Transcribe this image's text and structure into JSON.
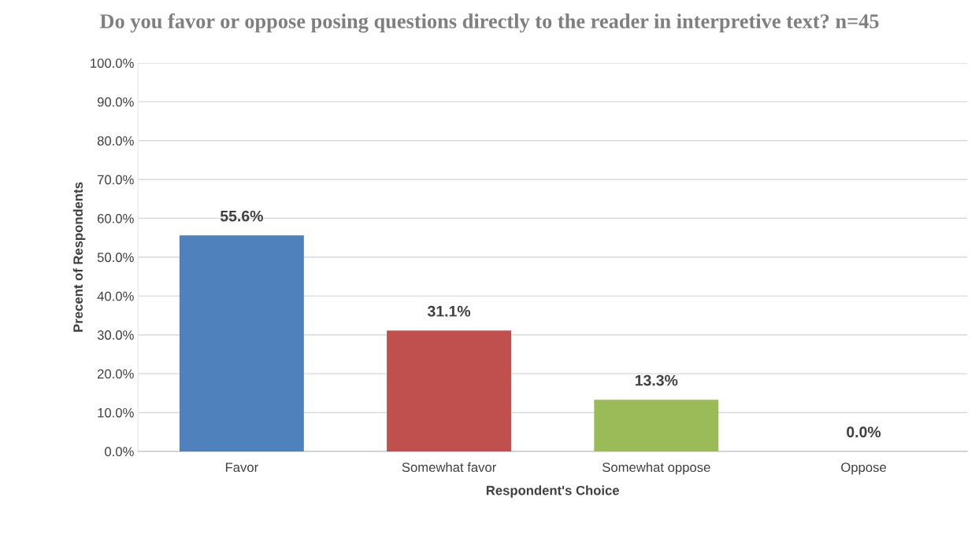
{
  "chart_data": {
    "type": "bar",
    "title": "Do you favor or oppose posing questions directly to the reader in interpretive text? n=45",
    "xlabel": "Respondent's Choice",
    "ylabel": "Precent of Respondents",
    "categories": [
      "Favor",
      "Somewhat favor",
      "Somewhat oppose",
      "Oppose"
    ],
    "values": [
      55.6,
      31.1,
      13.3,
      0.0
    ],
    "colors": [
      "#4f81bd",
      "#c0504d",
      "#9bbb59",
      "#8064a2"
    ],
    "value_labels": [
      "55.6%",
      "31.1%",
      "13.3%",
      "0.0%"
    ],
    "ylim": [
      0,
      100
    ],
    "yticks": [
      {
        "value": 0,
        "label": "0.0%"
      },
      {
        "value": 10,
        "label": "10.0%"
      },
      {
        "value": 20,
        "label": "20.0%"
      },
      {
        "value": 30,
        "label": "30.0%"
      },
      {
        "value": 40,
        "label": "40.0%"
      },
      {
        "value": 50,
        "label": "50.0%"
      },
      {
        "value": 60,
        "label": "60.0%"
      },
      {
        "value": 70,
        "label": "70.0%"
      },
      {
        "value": 80,
        "label": "80.0%"
      },
      {
        "value": 90,
        "label": "90.0%"
      },
      {
        "value": 100,
        "label": "100.0%"
      }
    ],
    "grid": "y"
  }
}
